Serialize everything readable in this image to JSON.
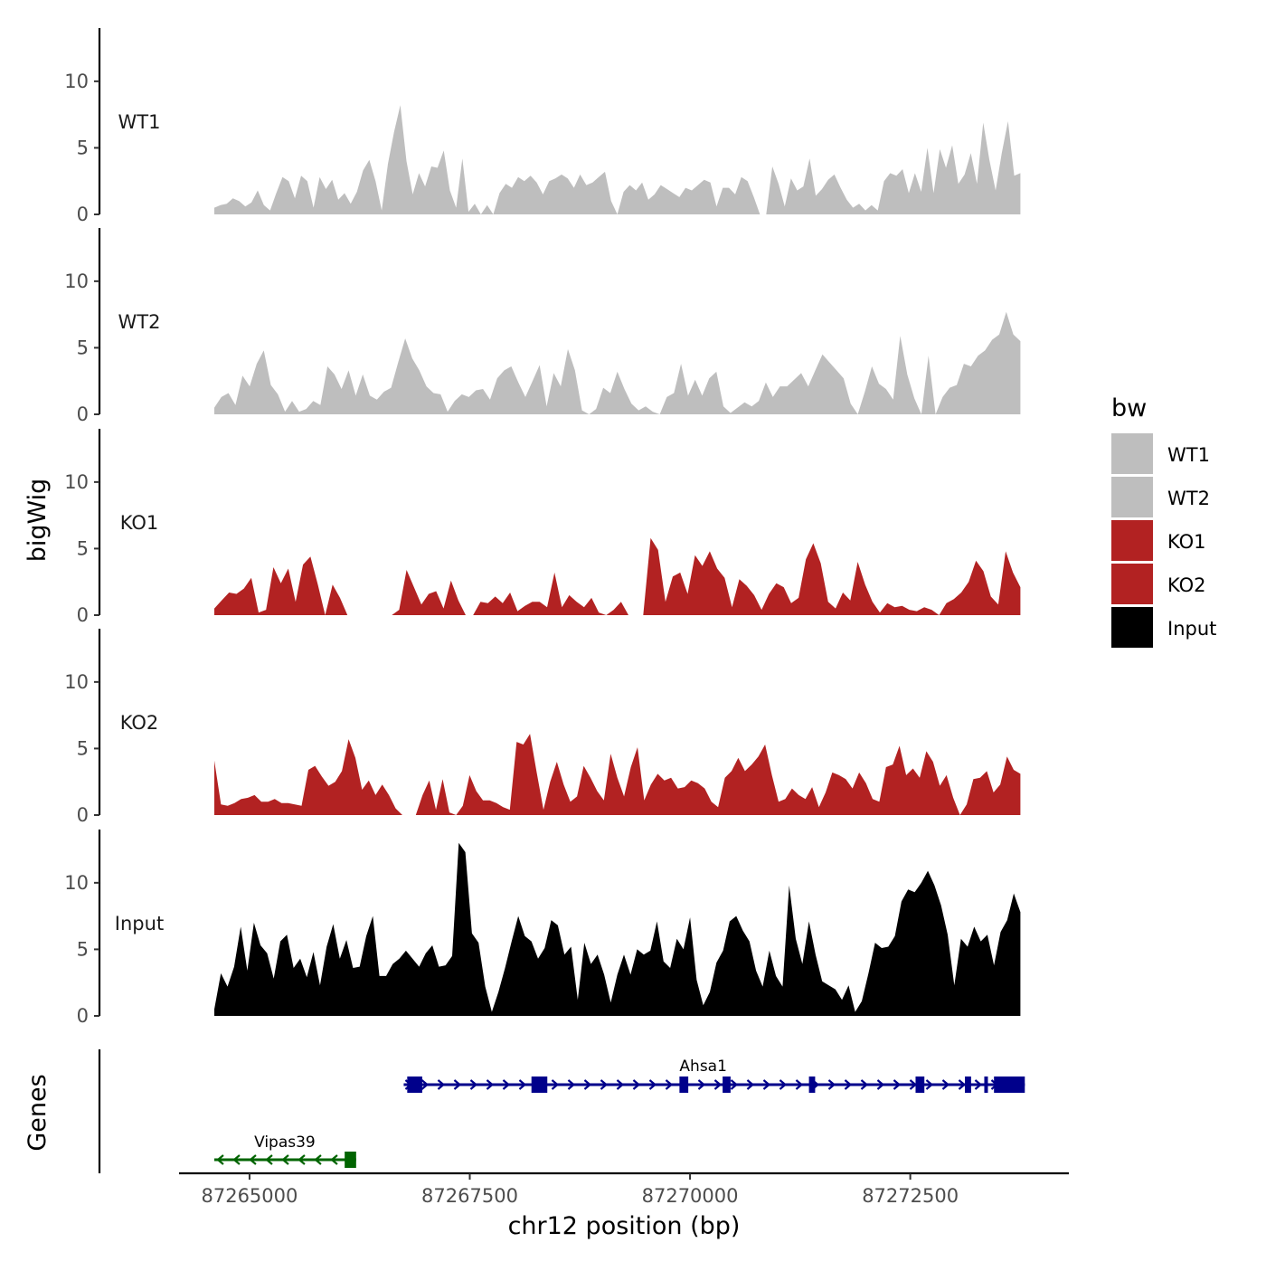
{
  "chart_data": {
    "type": "area",
    "title": "",
    "ylabel": "bigWig",
    "xlabel": "chr12 position (bp)",
    "genes_panel_label": "Genes",
    "xlim": [
      87264200,
      87274300
    ],
    "x_ticks": [
      87265000,
      87267500,
      87270000,
      87272500
    ],
    "x_tick_labels": [
      "87265000",
      "87267500",
      "87270000",
      "87272500"
    ],
    "ylim": [
      0,
      14
    ],
    "y_ticks": [
      0,
      5,
      10
    ],
    "y_tick_labels": [
      "0",
      "5",
      "10"
    ],
    "x_start": 87264600,
    "x_end": 87273750,
    "tracks": [
      {
        "name": "WT1",
        "color": "#BEBEBE",
        "values": [
          0.5,
          0.7,
          0.8,
          1.2,
          1.0,
          0.6,
          0.9,
          1.8,
          0.7,
          0.3,
          1.6,
          2.8,
          2.5,
          1.2,
          2.9,
          2.5,
          0.5,
          2.8,
          1.9,
          2.6,
          1.1,
          1.6,
          0.8,
          1.7,
          3.3,
          4.1,
          2.5,
          0.3,
          3.8,
          6.2,
          8.2,
          4.0,
          1.5,
          3.1,
          2.1,
          3.6,
          3.5,
          4.8,
          1.8,
          0.5,
          4.2,
          0.2,
          0.8,
          0.0,
          0.7,
          0.0,
          1.6,
          2.3,
          2.0,
          2.8,
          2.5,
          2.9,
          2.4,
          1.5,
          2.5,
          2.7,
          3.0,
          2.7,
          2.0,
          3.0,
          2.2,
          2.4,
          2.8,
          3.2,
          1.0,
          0.0,
          1.7,
          2.2,
          1.8,
          2.4,
          1.1,
          1.5,
          2.2,
          1.9,
          1.6,
          1.3,
          2.0,
          1.8,
          2.2,
          2.6,
          2.4,
          0.6,
          2.0,
          2.0,
          1.5,
          2.8,
          2.5,
          1.3,
          0.0,
          0.0,
          3.6,
          2.3,
          0.6,
          2.7,
          1.8,
          2.1,
          4.2,
          1.4,
          1.9,
          2.6,
          3.0,
          2.0,
          1.1,
          0.5,
          0.8,
          0.3,
          0.7,
          0.3,
          2.5,
          3.1,
          2.9,
          3.4,
          1.6,
          3.1,
          1.7,
          5.0,
          1.6,
          4.9,
          3.5,
          5.2,
          2.3,
          3.0,
          4.6,
          2.3,
          6.9,
          4.1,
          1.8,
          4.6,
          7.0,
          2.9,
          3.1
        ]
      },
      {
        "name": "WT2",
        "color": "#BEBEBE",
        "values": [
          0.5,
          1.3,
          1.6,
          0.7,
          2.9,
          2.1,
          3.8,
          4.8,
          2.2,
          1.5,
          0.2,
          1.0,
          0.2,
          0.4,
          1.0,
          0.7,
          3.6,
          3.0,
          1.9,
          3.3,
          1.4,
          3.0,
          1.4,
          1.1,
          1.7,
          2.0,
          3.9,
          5.7,
          4.2,
          3.3,
          2.1,
          1.6,
          1.5,
          0.2,
          1.0,
          1.5,
          1.3,
          1.8,
          1.9,
          1.1,
          2.7,
          3.3,
          3.6,
          2.4,
          1.3,
          2.5,
          3.7,
          0.6,
          3.1,
          2.1,
          4.9,
          3.3,
          0.3,
          0.0,
          0.4,
          2.0,
          1.6,
          3.2,
          1.9,
          0.8,
          0.3,
          0.6,
          0.2,
          0.0,
          1.3,
          1.6,
          3.8,
          1.4,
          2.6,
          1.4,
          2.7,
          3.2,
          0.6,
          0.1,
          0.5,
          0.9,
          0.6,
          1.0,
          2.4,
          1.3,
          2.1,
          2.1,
          2.6,
          3.1,
          2.1,
          3.3,
          4.5,
          3.9,
          3.3,
          2.7,
          0.8,
          0.0,
          1.7,
          3.6,
          2.3,
          1.9,
          1.1,
          5.9,
          3.0,
          1.2,
          0.0,
          4.4,
          0.0,
          1.3,
          2.0,
          2.2,
          3.8,
          3.6,
          4.4,
          4.8,
          5.6,
          6.0,
          7.7,
          6.0,
          5.5
        ]
      },
      {
        "name": "KO1",
        "color": "#B22222",
        "values": [
          0.5,
          1.1,
          1.7,
          1.6,
          2.0,
          2.8,
          0.2,
          0.4,
          3.6,
          2.4,
          3.5,
          1.0,
          3.8,
          4.4,
          2.3,
          0.0,
          2.3,
          1.3,
          0.0,
          0.0,
          0.0,
          0.0,
          0.0,
          0.0,
          0.0,
          0.4,
          3.4,
          2.1,
          0.8,
          1.6,
          1.8,
          0.5,
          2.6,
          1.1,
          0.0,
          0.0,
          1.0,
          0.9,
          1.4,
          0.9,
          1.7,
          0.3,
          0.7,
          1.0,
          1.0,
          0.6,
          3.2,
          0.6,
          1.5,
          1.0,
          0.6,
          1.3,
          0.2,
          0.0,
          0.4,
          1.0,
          0.0,
          0.0,
          0.0,
          5.8,
          4.9,
          1.0,
          2.9,
          3.2,
          1.6,
          4.5,
          3.7,
          4.8,
          3.5,
          2.8,
          0.6,
          2.7,
          2.2,
          1.5,
          0.4,
          1.6,
          2.4,
          2.1,
          0.9,
          1.3,
          4.2,
          5.4,
          3.9,
          1.0,
          0.5,
          1.7,
          1.1,
          4.0,
          2.3,
          1.0,
          0.2,
          0.9,
          0.6,
          0.7,
          0.4,
          0.3,
          0.6,
          0.4,
          0.0,
          0.9,
          1.2,
          1.7,
          2.5,
          4.1,
          3.3,
          1.4,
          0.8,
          4.8,
          3.2,
          2.1
        ]
      },
      {
        "name": "KO2",
        "color": "#B22222",
        "values": [
          4.1,
          0.8,
          0.7,
          0.9,
          1.2,
          1.3,
          1.5,
          1.0,
          1.0,
          1.2,
          0.9,
          0.9,
          0.8,
          0.7,
          3.4,
          3.7,
          2.9,
          2.2,
          2.5,
          3.3,
          5.7,
          4.3,
          1.9,
          2.6,
          1.5,
          2.3,
          1.5,
          0.5,
          0.0,
          0.0,
          0.0,
          1.5,
          2.6,
          0.4,
          2.7,
          0.2,
          0.0,
          0.7,
          3.0,
          1.8,
          1.1,
          1.1,
          0.9,
          0.6,
          0.4,
          5.5,
          5.3,
          6.1,
          3.2,
          0.4,
          2.5,
          4.0,
          2.3,
          1.0,
          1.4,
          3.7,
          2.8,
          1.8,
          1.1,
          4.6,
          2.8,
          1.4,
          3.6,
          5.1,
          1.1,
          2.3,
          3.1,
          2.6,
          2.8,
          2.0,
          2.1,
          2.6,
          2.4,
          2.0,
          1.0,
          0.6,
          2.8,
          3.3,
          4.3,
          3.3,
          3.8,
          4.4,
          5.3,
          3.0,
          1.0,
          1.2,
          2.0,
          1.5,
          1.2,
          2.1,
          0.6,
          1.7,
          3.2,
          3.0,
          2.7,
          2.0,
          3.2,
          2.4,
          1.2,
          1.0,
          3.6,
          3.8,
          5.2,
          3.0,
          3.5,
          2.8,
          4.8,
          4.0,
          2.2,
          3.0,
          1.3,
          0.0,
          0.8,
          2.7,
          2.8,
          3.3,
          1.7,
          2.3,
          4.4,
          3.4,
          3.1
        ]
      },
      {
        "name": "Input",
        "color": "#000000",
        "values": [
          0.5,
          3.2,
          2.2,
          3.7,
          6.7,
          3.4,
          7.0,
          5.3,
          4.7,
          2.8,
          5.6,
          6.1,
          3.6,
          4.3,
          2.9,
          4.8,
          2.3,
          5.2,
          6.9,
          4.3,
          5.7,
          3.6,
          3.7,
          6.0,
          7.5,
          3.0,
          3.0,
          3.9,
          4.3,
          4.9,
          4.3,
          3.7,
          4.7,
          5.3,
          3.7,
          3.8,
          4.5,
          13.0,
          12.3,
          6.2,
          5.5,
          2.2,
          0.3,
          1.8,
          3.6,
          5.6,
          7.5,
          6.0,
          5.6,
          4.3,
          5.1,
          7.2,
          6.8,
          4.6,
          5.2,
          1.2,
          5.5,
          3.9,
          4.6,
          3.1,
          1.0,
          3.1,
          4.6,
          3.1,
          5.0,
          4.6,
          4.9,
          7.1,
          4.1,
          3.6,
          5.8,
          5.0,
          7.4,
          2.7,
          0.8,
          1.8,
          4.0,
          4.9,
          7.1,
          7.5,
          6.4,
          5.6,
          3.4,
          2.2,
          4.9,
          3.0,
          2.2,
          9.8,
          5.8,
          3.9,
          7.1,
          4.6,
          2.6,
          2.3,
          2.0,
          1.2,
          2.3,
          0.3,
          1.1,
          3.2,
          5.5,
          5.1,
          5.2,
          6.0,
          8.6,
          9.5,
          9.3,
          10.0,
          10.9,
          9.8,
          8.3,
          6.1,
          2.3,
          5.8,
          5.2,
          6.7,
          5.6,
          6.1,
          3.8,
          6.3,
          7.2,
          9.2,
          7.8
        ]
      }
    ],
    "genes": [
      {
        "name": "Ahsa1",
        "strand": "+",
        "color": "#00008B",
        "start": 87266750,
        "end": 87273800,
        "exons": [
          [
            87266790,
            87266960
          ],
          [
            87268200,
            87268380
          ],
          [
            87269880,
            87269980
          ],
          [
            87270370,
            87270460
          ],
          [
            87271350,
            87271420
          ],
          [
            87272560,
            87272660
          ],
          [
            87273120,
            87273190
          ],
          [
            87273340,
            87273380
          ],
          [
            87273450,
            87273800
          ]
        ]
      },
      {
        "name": "Vipas39",
        "strand": "-",
        "color": "#006400",
        "start": 87264600,
        "end": 87266210,
        "exons": [
          [
            87266080,
            87266210
          ]
        ]
      }
    ],
    "legend": {
      "title": "bw",
      "entries": [
        {
          "label": "WT1",
          "color": "#BEBEBE"
        },
        {
          "label": "WT2",
          "color": "#BEBEBE"
        },
        {
          "label": "KO1",
          "color": "#B22222"
        },
        {
          "label": "KO2",
          "color": "#B22222"
        },
        {
          "label": "Input",
          "color": "#000000"
        }
      ],
      "position": "right"
    }
  }
}
